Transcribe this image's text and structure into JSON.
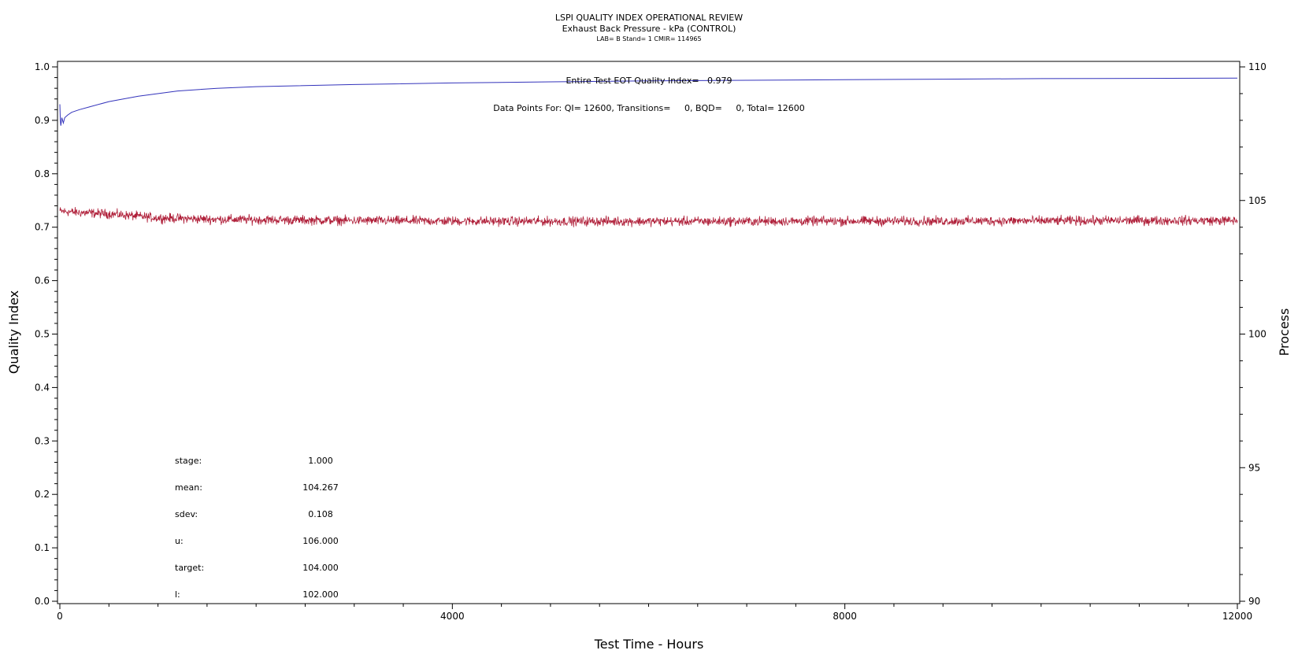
{
  "chart_data": {
    "type": "line",
    "title": "LSPI QUALITY INDEX OPERATIONAL REVIEW",
    "subtitle": "Exhaust Back Pressure - kPa (CONTROL)",
    "subtitle2": "LAB= B Stand= 1 CMIR= 114965",
    "xlabel": "Test Time - Hours",
    "ylabel_left": "Quality Index",
    "ylabel_right": "Process",
    "xlim": [
      0,
      12000
    ],
    "ylim_left": [
      0,
      1
    ],
    "ylim_right": [
      90,
      110
    ],
    "x_ticks": [
      "0",
      "4000",
      "8000",
      "12000"
    ],
    "y_ticks_left": [
      "0.0",
      "0.1",
      "0.2",
      "0.3",
      "0.4",
      "0.5",
      "0.6",
      "0.7",
      "0.8",
      "0.9",
      "1.0"
    ],
    "y_ticks_right": [
      "90",
      "95",
      "100",
      "105",
      "110"
    ],
    "annotation_qi": "Entire Test EOT Quality Index=   0.979",
    "annotation_points": "Data Points For: QI= 12600, Transitions=     0, BQD=     0, Total= 12600",
    "stats": [
      {
        "label": "stage:",
        "value": "1.000"
      },
      {
        "label": "mean:",
        "value": "104.267"
      },
      {
        "label": "sdev:",
        "value": "0.108"
      },
      {
        "label": "u:",
        "value": "106.000"
      },
      {
        "label": "target:",
        "value": "104.000"
      },
      {
        "label": "l:",
        "value": "102.000"
      }
    ],
    "series": [
      {
        "axis": "left",
        "color": "#3333bb",
        "x": [
          0,
          5,
          10,
          20,
          35,
          50,
          80,
          120,
          200,
          300,
          500,
          800,
          1200,
          1600,
          2000,
          3000,
          4000,
          5000,
          6000,
          7000,
          8000,
          9000,
          10000,
          11000,
          12000
        ],
        "y": [
          0.93,
          0.9,
          0.89,
          0.905,
          0.895,
          0.905,
          0.91,
          0.915,
          0.92,
          0.925,
          0.935,
          0.945,
          0.955,
          0.96,
          0.963,
          0.967,
          0.97,
          0.972,
          0.974,
          0.975,
          0.976,
          0.977,
          0.978,
          0.9785,
          0.979
        ]
      },
      {
        "axis": "right",
        "color": "#b0203a",
        "x": [
          0,
          200,
          500,
          1000,
          1500,
          2000,
          3000,
          4000,
          5000,
          6000,
          7000,
          8000,
          9000,
          10000,
          11000,
          12000
        ],
        "y": [
          104.6,
          104.55,
          104.5,
          104.35,
          104.3,
          104.28,
          104.25,
          104.23,
          104.22,
          104.22,
          104.22,
          104.23,
          104.23,
          104.24,
          104.25,
          104.25
        ],
        "noise_sdev": 0.108
      }
    ]
  }
}
